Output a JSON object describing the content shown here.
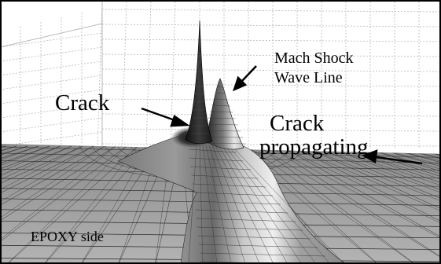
{
  "labels": {
    "mach_line_1": "Mach Shock",
    "mach_line_2": "Wave Line",
    "crack": "Crack",
    "propagating_line_1": "Crack",
    "propagating_line_2": "propagating",
    "epoxy_side": "EPOXY side"
  },
  "colors": {
    "surface_light": "#f4f4f4",
    "surface_mid": "#8c8c8c",
    "surface_dark": "#1e1e1e",
    "grid": "#b8b8b8",
    "mesh": "#222222",
    "text": "#000000"
  }
}
